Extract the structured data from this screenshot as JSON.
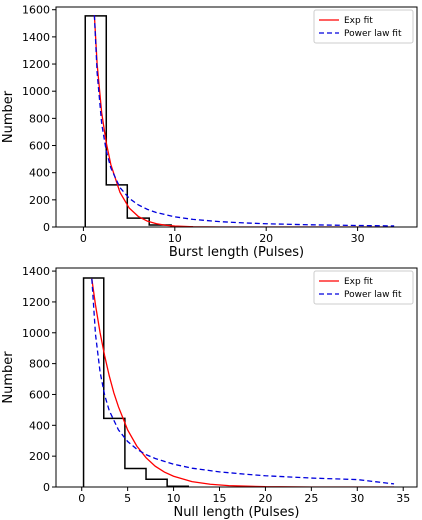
{
  "chart_data": [
    {
      "type": "histogram",
      "xlabel": "Burst length (Pulses)",
      "ylabel": "Number",
      "xlim": [
        -3,
        36.5
      ],
      "ylim": [
        0,
        1620
      ],
      "xticks": [
        0,
        10,
        20,
        30
      ],
      "yticks": [
        0,
        200,
        400,
        600,
        800,
        1000,
        1200,
        1400,
        1600
      ],
      "legend_position": "top-right",
      "legend": [
        {
          "label": "Exp fit",
          "color": "#ff0000",
          "dash": "solid"
        },
        {
          "label": "Power law fit",
          "color": "#0000dd",
          "dash": "dashed"
        }
      ],
      "histogram": {
        "color": "#000000",
        "bin_edges": [
          0.2,
          2.5,
          4.8,
          7.2,
          9.6,
          12
        ],
        "counts": [
          1555,
          310,
          65,
          15,
          0
        ]
      },
      "series": [
        {
          "name": "Exp fit",
          "color": "#ff0000",
          "dash": "solid",
          "x": [
            1.2,
            1.5,
            2,
            2.5,
            3,
            4,
            5,
            6,
            7,
            8,
            9,
            10,
            12,
            15,
            20,
            25,
            30,
            34
          ],
          "y": [
            1560,
            1200,
            840,
            620,
            460,
            255,
            140,
            78,
            43,
            24,
            13,
            7,
            2,
            0,
            0,
            0,
            0,
            0
          ]
        },
        {
          "name": "Power law fit",
          "color": "#0000dd",
          "dash": "dashed",
          "x": [
            1.2,
            1.5,
            2,
            2.5,
            3,
            4,
            5,
            6,
            7,
            8,
            10,
            12,
            15,
            18,
            20,
            25,
            30,
            34
          ],
          "y": [
            1560,
            1135,
            760,
            560,
            435,
            290,
            212,
            163,
            130,
            106,
            75,
            56,
            39,
            29,
            24,
            16,
            11,
            8
          ]
        }
      ]
    },
    {
      "type": "histogram",
      "xlabel": "Null length (Pulses)",
      "ylabel": "Number",
      "xlim": [
        -2.8,
        36.5
      ],
      "ylim": [
        0,
        1420
      ],
      "xticks": [
        0,
        5,
        10,
        15,
        20,
        25,
        30,
        35
      ],
      "yticks": [
        0,
        200,
        400,
        600,
        800,
        1000,
        1200,
        1400
      ],
      "legend_position": "top-right",
      "legend": [
        {
          "label": "Exp fit",
          "color": "#ff0000",
          "dash": "solid"
        },
        {
          "label": "Power law fit",
          "color": "#0000dd",
          "dash": "dashed"
        }
      ],
      "histogram": {
        "color": "#000000",
        "bin_edges": [
          0.2,
          2.4,
          4.7,
          7.0,
          9.3,
          11.6
        ],
        "counts": [
          1355,
          445,
          120,
          50,
          5
        ]
      },
      "series": [
        {
          "name": "Exp fit",
          "color": "#ff0000",
          "dash": "solid",
          "x": [
            1.1,
            1.5,
            2,
            2.5,
            3,
            3.5,
            4,
            5,
            6,
            7,
            8,
            9,
            10,
            12,
            14,
            16,
            20,
            25,
            30,
            34
          ],
          "y": [
            1350,
            1180,
            1000,
            850,
            720,
            610,
            520,
            370,
            265,
            190,
            135,
            97,
            70,
            35,
            18,
            9,
            2,
            0,
            0,
            0
          ]
        },
        {
          "name": "Power law fit",
          "color": "#0000dd",
          "dash": "dashed",
          "x": [
            1.1,
            1.5,
            2,
            2.5,
            3,
            4,
            5,
            6,
            7,
            8,
            10,
            12,
            15,
            18,
            20,
            25,
            30,
            34
          ],
          "y": [
            1350,
            990,
            745,
            595,
            495,
            370,
            295,
            245,
            210,
            185,
            148,
            122,
            98,
            82,
            73,
            58,
            48,
            20
          ]
        }
      ]
    }
  ]
}
